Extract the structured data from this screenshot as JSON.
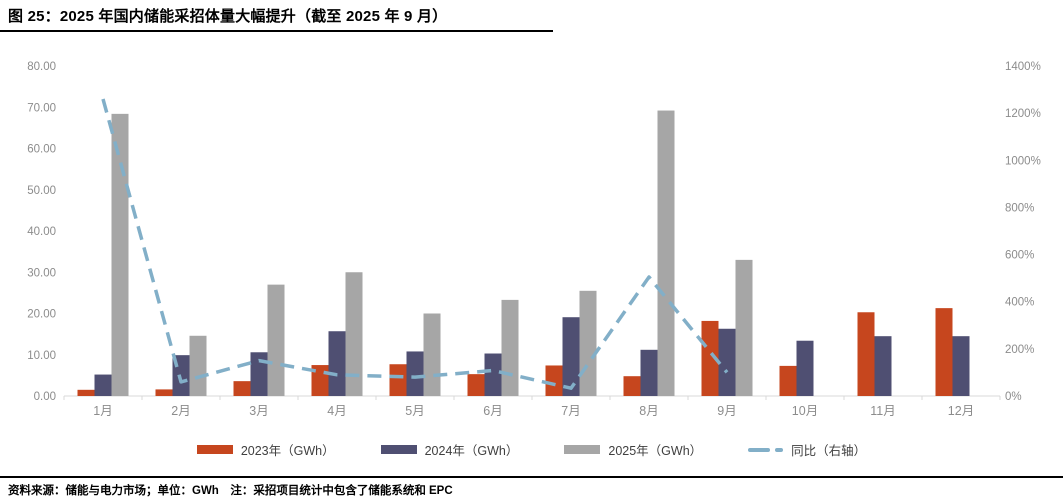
{
  "page": {
    "footnote": "资料来源：储能与电力市场；单位：GWh　注：采招项目统计中包含了储能系统和 EPC"
  },
  "chart_data": {
    "type": "combo-bar-line",
    "title": "图 25：2025 年国内储能采招体量大幅提升（截至 2025 年 9 月）",
    "categories": [
      "1月",
      "2月",
      "3月",
      "4月",
      "5月",
      "6月",
      "7月",
      "8月",
      "9月",
      "10月",
      "11月",
      "12月"
    ],
    "series": [
      {
        "name": "2023年（GWh）",
        "chart_type": "bar",
        "axis": "left",
        "color": "#C6461E",
        "values": [
          1.5,
          1.6,
          3.6,
          7.5,
          7.7,
          5.3,
          7.4,
          4.8,
          18.2,
          7.3,
          20.3,
          21.3
        ]
      },
      {
        "name": "2024年（GWh）",
        "chart_type": "bar",
        "axis": "left",
        "color": "#4F4F72",
        "values": [
          5.2,
          9.9,
          10.6,
          15.7,
          10.8,
          10.3,
          19.1,
          11.2,
          16.3,
          13.4,
          14.5,
          14.5
        ]
      },
      {
        "name": "2025年（GWh）",
        "chart_type": "bar",
        "axis": "left",
        "color": "#A6A6A6",
        "values": [
          68.4,
          14.6,
          27.0,
          30.0,
          20.0,
          23.3,
          25.5,
          69.2,
          33.0,
          null,
          null,
          null
        ]
      },
      {
        "name": "同比（右轴）",
        "chart_type": "line",
        "axis": "right",
        "color": "#82AFC8",
        "line_style": "dashed",
        "values": [
          1260,
          60,
          150,
          90,
          80,
          108,
          33,
          505,
          100,
          null,
          null,
          null
        ]
      }
    ],
    "left_axis": {
      "min": 0,
      "max": 80,
      "step": 10,
      "unit": "GWh",
      "tick_labels": [
        "80.00",
        "70.00",
        "60.00",
        "50.00",
        "40.00",
        "30.00",
        "20.00",
        "10.00",
        "0.00"
      ]
    },
    "right_axis": {
      "min": 0,
      "max": 1400,
      "step": 200,
      "unit": "%",
      "tick_labels": [
        "1400%",
        "1200%",
        "1000%",
        "800%",
        "600%",
        "400%",
        "200%",
        "0%"
      ]
    },
    "grid": false,
    "legend_position": "bottom"
  }
}
